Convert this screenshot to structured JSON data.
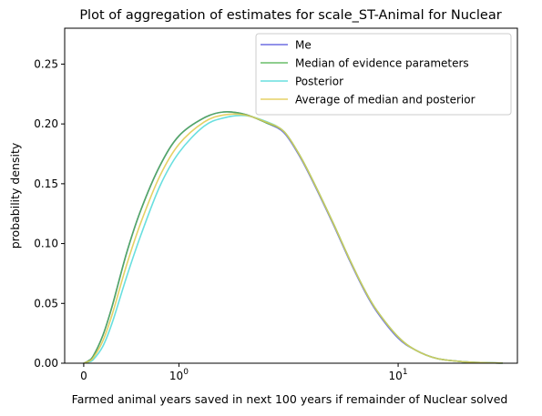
{
  "chart_data": {
    "type": "line",
    "title": "Plot of aggregation of estimates for scale_ST-Animal for Nuclear",
    "xlabel": "Farmed animal years saved in next 100 years if remainder of Nuclear solved",
    "ylabel": "probability density",
    "x_scale": "symlog",
    "xlim": [
      -0.2,
      35
    ],
    "ylim": [
      0,
      0.28
    ],
    "x_ticks": [
      {
        "value": 0,
        "label": "0"
      },
      {
        "value": 1,
        "label": "10",
        "exponent": "0"
      },
      {
        "value": 10,
        "label": "10",
        "exponent": "1"
      }
    ],
    "y_ticks": [
      {
        "value": 0.0,
        "label": "0.00"
      },
      {
        "value": 0.05,
        "label": "0.05"
      },
      {
        "value": 0.1,
        "label": "0.10"
      },
      {
        "value": 0.15,
        "label": "0.15"
      },
      {
        "value": 0.2,
        "label": "0.20"
      },
      {
        "value": 0.25,
        "label": "0.25"
      }
    ],
    "grid": false,
    "legend_position": "top-right",
    "series": [
      {
        "name": "Me",
        "color": "#5555dd",
        "x": [
          0,
          0.05,
          0.1,
          0.2,
          0.3,
          0.45,
          0.6,
          0.8,
          1.0,
          1.3,
          1.6,
          2.0,
          2.5,
          3.0,
          3.5,
          4.0,
          5.0,
          6.0,
          7.0,
          8.0,
          10.0,
          12.0,
          15.0,
          20.0,
          25.0,
          30.0
        ],
        "y": [
          0,
          0.002,
          0.006,
          0.023,
          0.048,
          0.092,
          0.128,
          0.165,
          0.19,
          0.205,
          0.21,
          0.208,
          0.201,
          0.193,
          0.175,
          0.155,
          0.118,
          0.086,
          0.061,
          0.043,
          0.021,
          0.011,
          0.004,
          0.0012,
          0.0004,
          0.0001
        ]
      },
      {
        "name": "Median of evidence parameters",
        "color": "#4db34d",
        "x": [
          0,
          0.05,
          0.1,
          0.2,
          0.3,
          0.45,
          0.6,
          0.8,
          1.0,
          1.3,
          1.6,
          2.0,
          2.5,
          3.0,
          3.5,
          4.0,
          5.0,
          6.0,
          7.0,
          8.0,
          10.0,
          12.0,
          15.0,
          20.0,
          25.0,
          30.0
        ],
        "y": [
          0,
          0.002,
          0.006,
          0.023,
          0.048,
          0.092,
          0.128,
          0.165,
          0.19,
          0.205,
          0.21,
          0.208,
          0.201,
          0.194,
          0.176,
          0.156,
          0.119,
          0.087,
          0.062,
          0.044,
          0.022,
          0.011,
          0.004,
          0.0012,
          0.0004,
          0.0001
        ]
      },
      {
        "name": "Posterior",
        "color": "#4fd9d9",
        "x": [
          0,
          0.05,
          0.1,
          0.2,
          0.3,
          0.45,
          0.6,
          0.8,
          1.0,
          1.3,
          1.6,
          2.0,
          2.5,
          3.0,
          3.5,
          4.0,
          5.0,
          6.0,
          7.0,
          8.0,
          10.0,
          12.0,
          15.0,
          20.0,
          25.0,
          30.0
        ],
        "y": [
          0,
          0.001,
          0.003,
          0.014,
          0.034,
          0.072,
          0.107,
          0.148,
          0.176,
          0.198,
          0.205,
          0.207,
          0.202,
          0.194,
          0.176,
          0.156,
          0.119,
          0.087,
          0.062,
          0.044,
          0.022,
          0.011,
          0.004,
          0.0012,
          0.0004,
          0.0001
        ]
      },
      {
        "name": "Average of median and posterior",
        "color": "#e0c94a",
        "x": [
          0,
          0.05,
          0.1,
          0.2,
          0.3,
          0.45,
          0.6,
          0.8,
          1.0,
          1.3,
          1.6,
          2.0,
          2.5,
          3.0,
          3.5,
          4.0,
          5.0,
          6.0,
          7.0,
          8.0,
          10.0,
          12.0,
          15.0,
          20.0,
          25.0,
          30.0
        ],
        "y": [
          0,
          0.0015,
          0.0045,
          0.0185,
          0.041,
          0.082,
          0.1175,
          0.1565,
          0.183,
          0.2015,
          0.2075,
          0.2075,
          0.2015,
          0.194,
          0.176,
          0.156,
          0.119,
          0.087,
          0.062,
          0.044,
          0.022,
          0.011,
          0.004,
          0.0012,
          0.0004,
          0.0001
        ]
      }
    ]
  }
}
